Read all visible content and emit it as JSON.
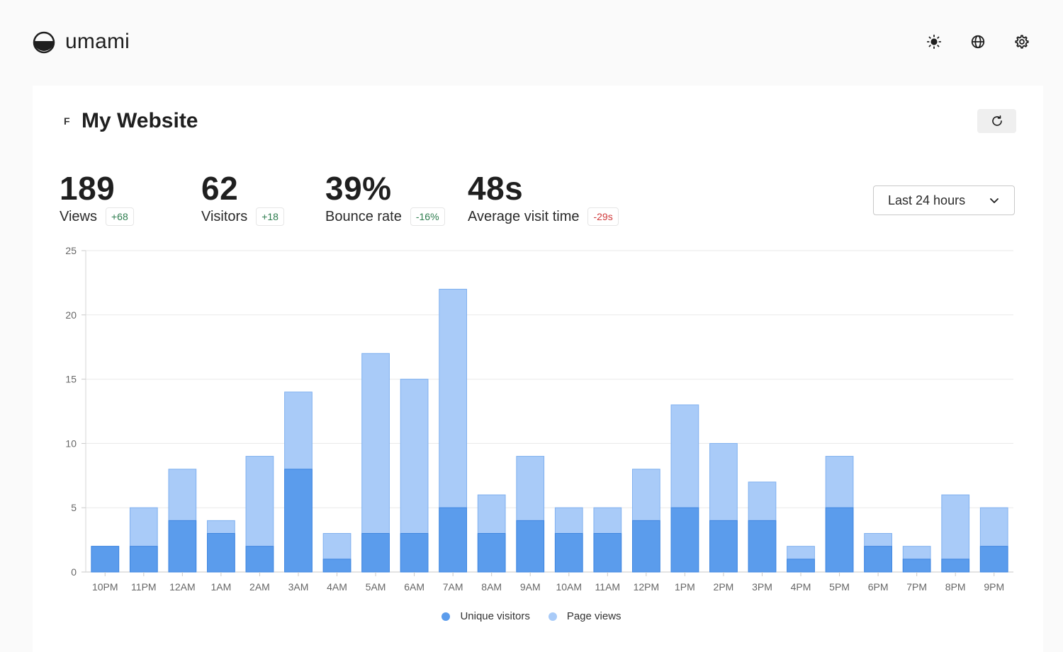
{
  "app": {
    "name": "umami"
  },
  "header": {
    "icons": [
      "sun-icon",
      "globe-icon",
      "gear-icon"
    ]
  },
  "website": {
    "favicon_letter": "F",
    "name": "My Website"
  },
  "metrics": [
    {
      "value": "189",
      "label": "Views",
      "change": "+68",
      "trend": "up"
    },
    {
      "value": "62",
      "label": "Visitors",
      "change": "+18",
      "trend": "up"
    },
    {
      "value": "39%",
      "label": "Bounce rate",
      "change": "-16%",
      "trend": "up"
    },
    {
      "value": "48s",
      "label": "Average visit time",
      "change": "-29s",
      "trend": "down"
    }
  ],
  "date_range": {
    "selected": "Last 24 hours"
  },
  "colors": {
    "visitors": "#5b9cec",
    "views": "#a9cbf8",
    "visitors_border": "#3d85e0",
    "views_border": "#7fb0ef",
    "positive": "#2e7d4f",
    "negative": "#d0393a"
  },
  "chart_data": {
    "type": "bar",
    "stacked": true,
    "categories": [
      "10PM",
      "11PM",
      "12AM",
      "1AM",
      "2AM",
      "3AM",
      "4AM",
      "5AM",
      "6AM",
      "7AM",
      "8AM",
      "9AM",
      "10AM",
      "11AM",
      "12PM",
      "1PM",
      "2PM",
      "3PM",
      "4PM",
      "5PM",
      "6PM",
      "7PM",
      "8PM",
      "9PM"
    ],
    "series": [
      {
        "name": "Unique visitors",
        "values": [
          2,
          2,
          4,
          3,
          2,
          8,
          1,
          3,
          3,
          5,
          3,
          4,
          3,
          3,
          4,
          5,
          4,
          4,
          1,
          5,
          2,
          1,
          1,
          2
        ]
      },
      {
        "name": "Page views",
        "values": [
          2,
          5,
          8,
          4,
          9,
          14,
          3,
          17,
          15,
          22,
          6,
          9,
          5,
          5,
          8,
          13,
          10,
          7,
          2,
          9,
          3,
          2,
          6,
          5
        ]
      }
    ],
    "ylim": [
      0,
      25
    ],
    "yticks": [
      0,
      5,
      10,
      15,
      20,
      25
    ],
    "grid": true,
    "legend": "bottom-center"
  }
}
